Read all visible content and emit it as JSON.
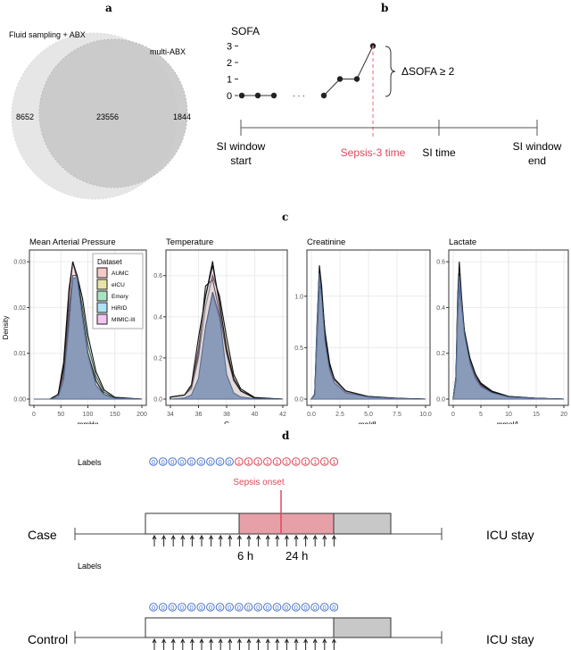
{
  "panel_labels": {
    "a": "a",
    "b": "b",
    "c": "c",
    "d": "d"
  },
  "venn": {
    "set_a": "Fluid sampling + ABX",
    "set_b": "multi-ABX",
    "only_a": "8652",
    "both": "23556",
    "only_b": "1844",
    "colors": {
      "set_a": "#e6e6e6",
      "set_b": "#c8c8c8"
    }
  },
  "sofa": {
    "title": "SOFA",
    "y_ticks": [
      "0",
      "1",
      "2",
      "3"
    ],
    "points_before_gap": [
      0,
      0,
      0
    ],
    "gap": "· · ·",
    "points_after_gap": [
      0,
      1,
      1,
      3
    ],
    "delta_label": "ΔSOFA ≥ 2",
    "timeline": {
      "window_start": [
        "SI window",
        "start"
      ],
      "sepsis_time": "Sepsis-3 time",
      "si_time": "SI time",
      "window_end": [
        "SI window",
        "end"
      ]
    },
    "sepsis_color": "#e0475a"
  },
  "chart_data": [
    {
      "type": "area",
      "title": "Mean Arterial Pressure",
      "xlabel": "mmHg",
      "ylabel": "Density",
      "xlim": [
        0,
        200
      ],
      "ylim": [
        0,
        0.031
      ],
      "xticks": [
        "0",
        "50",
        "100",
        "150",
        "200"
      ],
      "xtick_values": [
        0,
        50,
        100,
        150,
        200
      ],
      "yticks": [
        "0.00",
        "0.01",
        "0.02",
        "0.03"
      ],
      "ytick_values": [
        0,
        0.01,
        0.02,
        0.03
      ],
      "grid": true,
      "legend": "top-right",
      "x": [
        0,
        30,
        45,
        55,
        65,
        72,
        80,
        90,
        100,
        115,
        130,
        150,
        200
      ],
      "series": [
        {
          "name": "AUMC",
          "values": [
            0,
            0,
            0.001,
            0.008,
            0.024,
            0.03,
            0.026,
            0.017,
            0.009,
            0.003,
            0.001,
            0.0002,
            0
          ]
        },
        {
          "name": "eICU",
          "values": [
            0,
            0,
            0.001,
            0.006,
            0.02,
            0.027,
            0.027,
            0.02,
            0.012,
            0.005,
            0.0015,
            0.0003,
            0
          ]
        },
        {
          "name": "Emory",
          "values": [
            0,
            0,
            0.001,
            0.005,
            0.018,
            0.026,
            0.027,
            0.022,
            0.014,
            0.006,
            0.002,
            0.0004,
            0
          ]
        },
        {
          "name": "HiRID",
          "values": [
            0,
            0,
            0.0005,
            0.004,
            0.016,
            0.027,
            0.027,
            0.018,
            0.01,
            0.003,
            0.001,
            0.0002,
            0
          ]
        },
        {
          "name": "MIMIC-III",
          "values": [
            0,
            0,
            0.001,
            0.007,
            0.023,
            0.03,
            0.027,
            0.018,
            0.01,
            0.004,
            0.001,
            0.0002,
            0
          ]
        }
      ]
    },
    {
      "type": "area",
      "title": "Temperature",
      "xlabel": "C",
      "ylabel": "",
      "xlim": [
        34,
        42
      ],
      "ylim": [
        0,
        0.69
      ],
      "xticks": [
        "34",
        "36",
        "38",
        "40",
        "42"
      ],
      "xtick_values": [
        34,
        36,
        38,
        40,
        42
      ],
      "yticks": [
        "0.0",
        "0.2",
        "0.4",
        "0.6"
      ],
      "ytick_values": [
        0,
        0.2,
        0.4,
        0.6
      ],
      "grid": true,
      "x": [
        34,
        35,
        35.5,
        36,
        36.5,
        37,
        37.5,
        38,
        38.5,
        39,
        40,
        42
      ],
      "series": [
        {
          "name": "AUMC",
          "values": [
            0.01,
            0.02,
            0.06,
            0.25,
            0.5,
            0.67,
            0.45,
            0.25,
            0.1,
            0.04,
            0.005,
            0
          ]
        },
        {
          "name": "eICU",
          "values": [
            0.01,
            0.02,
            0.05,
            0.2,
            0.45,
            0.6,
            0.5,
            0.3,
            0.12,
            0.05,
            0.008,
            0
          ]
        },
        {
          "name": "Emory",
          "values": [
            0.01,
            0.02,
            0.06,
            0.22,
            0.55,
            0.58,
            0.42,
            0.22,
            0.09,
            0.04,
            0.005,
            0
          ]
        },
        {
          "name": "HiRID",
          "values": [
            0,
            0.005,
            0.02,
            0.1,
            0.35,
            0.52,
            0.4,
            0.12,
            0.03,
            0.01,
            0.002,
            0
          ]
        },
        {
          "name": "MIMIC-III",
          "values": [
            0.01,
            0.02,
            0.07,
            0.3,
            0.5,
            0.65,
            0.47,
            0.24,
            0.1,
            0.04,
            0.005,
            0
          ]
        }
      ]
    },
    {
      "type": "area",
      "title": "Creatinine",
      "xlabel": "mg/dL",
      "ylabel": "",
      "xlim": [
        0,
        10
      ],
      "ylim": [
        0,
        1.38
      ],
      "xticks": [
        "0.0",
        "2.5",
        "5.0",
        "7.5",
        "10.0"
      ],
      "xtick_values": [
        0,
        2.5,
        5,
        7.5,
        10
      ],
      "yticks": [
        "0.0",
        "0.5",
        "1.0"
      ],
      "ytick_values": [
        0,
        0.5,
        1.0
      ],
      "grid": true,
      "x": [
        0,
        0.3,
        0.5,
        0.7,
        0.9,
        1.2,
        1.6,
        2,
        3,
        5,
        7.5,
        10
      ],
      "series": [
        {
          "name": "AUMC",
          "values": [
            0,
            0.05,
            0.7,
            1.3,
            1.1,
            0.6,
            0.3,
            0.18,
            0.07,
            0.02,
            0.005,
            0
          ]
        },
        {
          "name": "eICU",
          "values": [
            0,
            0.04,
            0.6,
            1.05,
            1.0,
            0.65,
            0.35,
            0.2,
            0.08,
            0.025,
            0.008,
            0
          ]
        },
        {
          "name": "Emory",
          "values": [
            0,
            0.04,
            0.65,
            1.2,
            1.05,
            0.6,
            0.32,
            0.19,
            0.08,
            0.02,
            0.006,
            0
          ]
        },
        {
          "name": "HiRID",
          "values": [
            0,
            0.05,
            0.75,
            1.25,
            1.0,
            0.55,
            0.28,
            0.16,
            0.06,
            0.02,
            0.005,
            0
          ]
        },
        {
          "name": "MIMIC-III",
          "values": [
            0,
            0.04,
            0.6,
            1.1,
            1.05,
            0.62,
            0.33,
            0.2,
            0.08,
            0.025,
            0.007,
            0
          ]
        }
      ]
    },
    {
      "type": "area",
      "title": "Lactate",
      "xlabel": "mmol/L",
      "ylabel": "",
      "xlim": [
        0,
        20
      ],
      "ylim": [
        0,
        0.62
      ],
      "xticks": [
        "0",
        "5",
        "10",
        "15",
        "20"
      ],
      "xtick_values": [
        0,
        5,
        10,
        15,
        20
      ],
      "yticks": [
        "0.0",
        "0.2",
        "0.4",
        "0.6"
      ],
      "ytick_values": [
        0,
        0.2,
        0.4,
        0.6
      ],
      "grid": true,
      "x": [
        0,
        0.5,
        0.8,
        1.1,
        1.5,
        2,
        3,
        4,
        5,
        7,
        10,
        15,
        20
      ],
      "series": [
        {
          "name": "AUMC",
          "values": [
            0,
            0.1,
            0.45,
            0.6,
            0.45,
            0.3,
            0.17,
            0.1,
            0.06,
            0.03,
            0.01,
            0.003,
            0
          ]
        },
        {
          "name": "eICU",
          "values": [
            0,
            0.08,
            0.35,
            0.42,
            0.4,
            0.3,
            0.18,
            0.11,
            0.07,
            0.035,
            0.012,
            0.004,
            0
          ]
        },
        {
          "name": "Emory",
          "values": [
            0,
            0.09,
            0.4,
            0.5,
            0.42,
            0.3,
            0.17,
            0.1,
            0.06,
            0.03,
            0.01,
            0.003,
            0
          ]
        },
        {
          "name": "HiRID",
          "values": [
            0,
            0.1,
            0.45,
            0.55,
            0.43,
            0.29,
            0.16,
            0.09,
            0.055,
            0.028,
            0.009,
            0.003,
            0
          ]
        },
        {
          "name": "MIMIC-III",
          "values": [
            0,
            0.08,
            0.38,
            0.48,
            0.41,
            0.3,
            0.18,
            0.11,
            0.065,
            0.032,
            0.011,
            0.004,
            0
          ]
        }
      ]
    }
  ],
  "legend": {
    "title": "Dataset",
    "items": [
      {
        "name": "AUMC",
        "color": "#f6c9c9"
      },
      {
        "name": "eICU",
        "color": "#e8e4a8"
      },
      {
        "name": "Emory",
        "color": "#a9e3c4"
      },
      {
        "name": "HiRID",
        "color": "#aee2f5"
      },
      {
        "name": "MIMIC-III",
        "color": "#f4c6f1"
      }
    ]
  },
  "timeline_d": {
    "labels_text": "Labels",
    "sepsis_onset": "Sepsis onset",
    "case": {
      "name": "Case",
      "labels": [
        0,
        0,
        0,
        0,
        0,
        0,
        0,
        0,
        0,
        1,
        1,
        1,
        1,
        1,
        1,
        1,
        1,
        1,
        1,
        1
      ]
    },
    "control": {
      "name": "Control",
      "labels": [
        0,
        0,
        0,
        0,
        0,
        0,
        0,
        0,
        0,
        0,
        0,
        0,
        0,
        0,
        0,
        0,
        0,
        0,
        0,
        0
      ]
    },
    "icu_stay": "ICU stay",
    "marker_6h": "6 h",
    "marker_24h": "24 h",
    "colors": {
      "label0": "#4a74c8",
      "label1": "#e0475a",
      "window": "#e8a0a8",
      "after": "#c8c8c8"
    }
  }
}
